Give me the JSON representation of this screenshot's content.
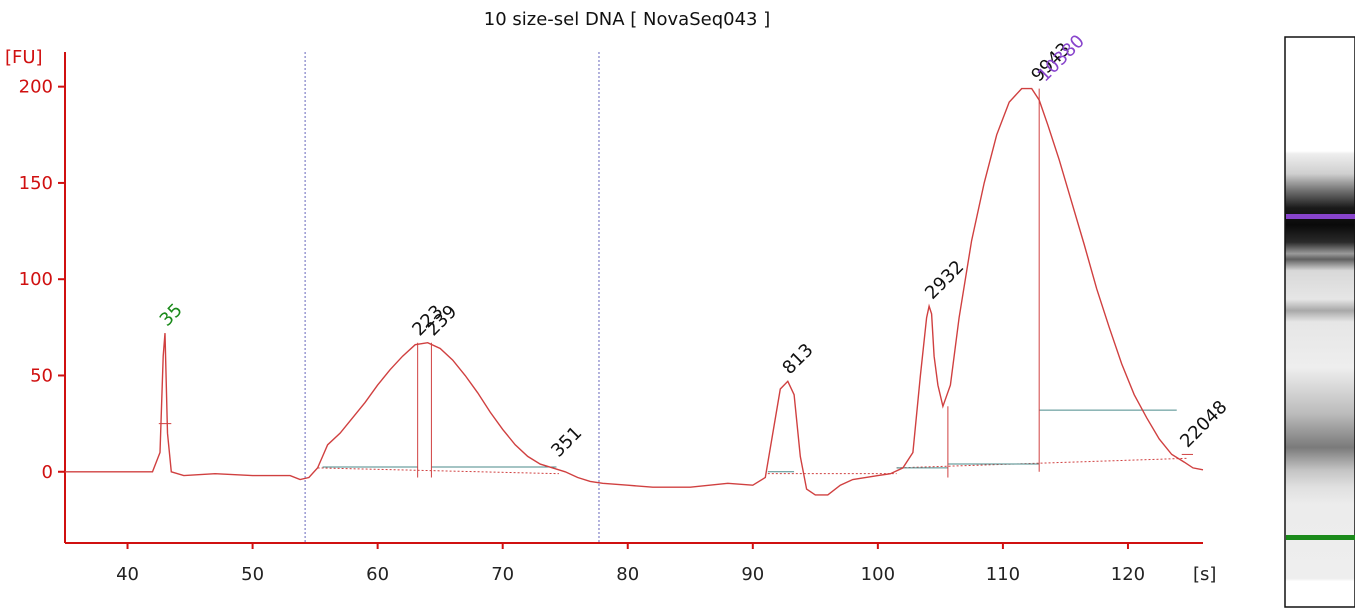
{
  "chart_data": {
    "type": "line",
    "title": "10 size-sel DNA  [ NovaSeq043 ]",
    "ylabel": "[FU]",
    "xlabel": "[s]",
    "xlim": [
      35,
      126
    ],
    "ylim": [
      -37,
      218
    ],
    "x_ticks": [
      40,
      50,
      60,
      70,
      80,
      90,
      100,
      110,
      120
    ],
    "y_ticks": [
      0,
      50,
      100,
      150,
      200
    ],
    "colors": {
      "trace": "#d04040",
      "axis": "#d01010",
      "marker_lower": "#1a8a1a",
      "marker_upper": "#8844cc",
      "baseline_segment": "#4a8a8a",
      "region_line": "#6666bb"
    },
    "region_lines_x": [
      54.2,
      77.7
    ],
    "series": [
      {
        "x": [
          35,
          38,
          40,
          42,
          42.6,
          42.85,
          43.0,
          43.2,
          43.5,
          44.5,
          47,
          50,
          53,
          53.8,
          54.5,
          55.2,
          55.6,
          56,
          57,
          58,
          59,
          60,
          61,
          62,
          63,
          64,
          65,
          66,
          67,
          68,
          69,
          70,
          71,
          72,
          73,
          74,
          75,
          76,
          77,
          78,
          80,
          82,
          85,
          88,
          90,
          91,
          91.6,
          92.2,
          92.8,
          93.3,
          93.8,
          94.3,
          95,
          96,
          97,
          98,
          100,
          101,
          102,
          102.8,
          103.4,
          103.9,
          104.1,
          104.3,
          104.5,
          104.8,
          105.2,
          105.8,
          106.5,
          107.5,
          108.5,
          109.5,
          110.5,
          111.5,
          112.3,
          112.9,
          113.6,
          114.5,
          115.5,
          116.5,
          117.5,
          118.5,
          119.5,
          120.5,
          121.5,
          122.5,
          123.5,
          124.5,
          125.2,
          126
        ],
        "y": [
          0,
          0,
          0,
          0,
          10,
          60,
          72,
          20,
          0,
          -2,
          -1,
          -2,
          -2,
          -4,
          -3,
          2,
          8,
          14,
          20,
          28,
          36,
          45,
          53,
          60,
          66,
          67,
          64,
          58,
          50,
          41,
          31,
          22,
          14,
          8,
          4,
          2,
          0,
          -3,
          -5,
          -6,
          -7,
          -8,
          -8,
          -6,
          -7,
          -3,
          20,
          43,
          47,
          40,
          8,
          -9,
          -12,
          -12,
          -7,
          -4,
          -2,
          -1,
          2,
          10,
          50,
          80,
          86,
          82,
          60,
          45,
          34,
          45,
          80,
          120,
          150,
          175,
          192,
          199,
          199,
          193,
          180,
          162,
          140,
          118,
          95,
          75,
          56,
          40,
          28,
          17,
          9,
          5,
          2,
          1
        ]
      }
    ],
    "peak_labels": [
      {
        "text": "35",
        "x": 43.0,
        "y": 72,
        "color": "green"
      },
      {
        "text": "223",
        "x": 63.2,
        "y": 67,
        "color": "black"
      },
      {
        "text": "239",
        "x": 64.3,
        "y": 67,
        "color": "black"
      },
      {
        "text": "351",
        "x": 74.3,
        "y": 4,
        "color": "black"
      },
      {
        "text": "813",
        "x": 92.8,
        "y": 47,
        "color": "black"
      },
      {
        "text": "2932",
        "x": 104.2,
        "y": 86,
        "color": "black"
      },
      {
        "text": "9943",
        "x": 112.7,
        "y": 199,
        "color": "black"
      },
      {
        "text": "10380",
        "x": 113.2,
        "y": 199,
        "color": "purple"
      },
      {
        "text": "22048",
        "x": 124.6,
        "y": 9,
        "color": "black"
      }
    ],
    "gel_lane": {
      "marker_lower_color": "#1a8a1a",
      "marker_upper_color": "#8844cc"
    }
  }
}
